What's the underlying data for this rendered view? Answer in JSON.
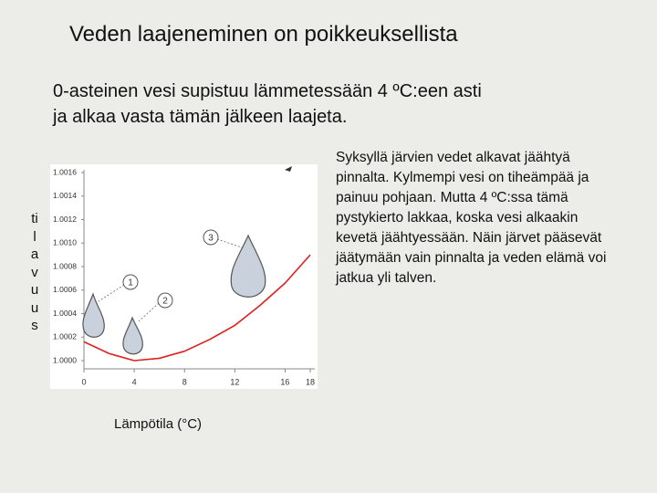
{
  "title": "Veden laajeneminen on poikkeuksellista",
  "subtitle_lines": [
    "0-asteinen vesi supistuu lämmetessään 4 ºC:een asti",
    "ja alkaa vasta tämän jälkeen laajeta."
  ],
  "side_text_lines": [
    "Syksyllä järvien vedet alkavat jäähtyä",
    "pinnalta. Kylmempi vesi on tiheämpää ja",
    "painuu pohjaan. Mutta 4 ºC:ssa tämä",
    "pystykierto lakkaa, koska vesi alkaakin",
    "kevetä jäähtyessään. Näin järvet pääsevät",
    "jäätymään vain pinnalta ja veden elämä voi",
    "jatkua yli talven."
  ],
  "chart_data": {
    "type": "line",
    "y_label": "tilavuus",
    "x_label": "Lämpötila (°C)",
    "x": [
      0,
      2,
      4,
      6,
      8,
      10,
      12,
      14,
      16,
      18
    ],
    "series": [
      {
        "color": "#e0201c",
        "values": [
          1.00016,
          1.00006,
          1.0,
          1.00002,
          1.00008,
          1.00018,
          1.0003,
          1.00047,
          1.00066,
          1.0009
        ]
      }
    ],
    "xlim": [
      0,
      18
    ],
    "xticks": [
      0,
      4,
      8,
      12,
      16,
      18
    ],
    "ylim": [
      1.0,
      1.0016
    ],
    "yticks": [
      {
        "value": 1.0,
        "label": "1.0000"
      },
      {
        "value": 1.0002,
        "label": "1.0002"
      },
      {
        "value": 1.0004,
        "label": "1.0004"
      },
      {
        "value": 1.0006,
        "label": "1.0006"
      },
      {
        "value": 1.0008,
        "label": "1.0008"
      },
      {
        "value": 1.001,
        "label": "1.0010"
      },
      {
        "value": 1.0012,
        "label": "1.0012"
      },
      {
        "value": 1.0014,
        "label": "1.0014"
      },
      {
        "value": 1.0016,
        "label": "1.0016"
      }
    ],
    "annotations": [
      "1",
      "2",
      "3"
    ]
  }
}
